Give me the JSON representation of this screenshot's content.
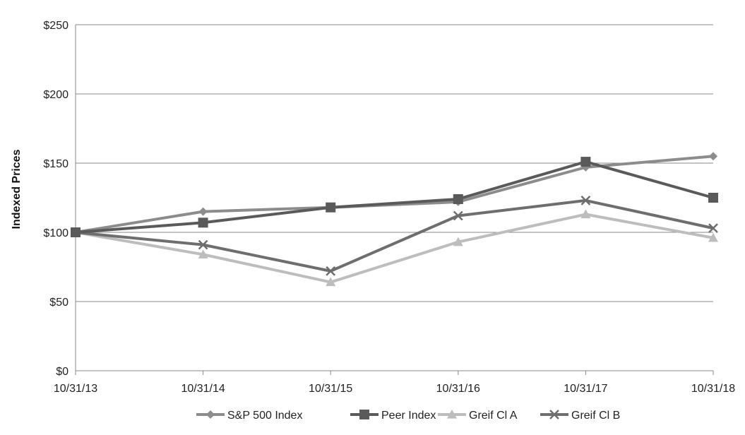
{
  "chart_data": {
    "type": "line",
    "title": "",
    "xlabel": "",
    "ylabel": "Indexed Prices",
    "categories": [
      "10/31/13",
      "10/31/14",
      "10/31/15",
      "10/31/16",
      "10/31/17",
      "10/31/18"
    ],
    "ylim": [
      0,
      250
    ],
    "yticks": [
      0,
      50,
      100,
      150,
      200,
      250
    ],
    "ytick_labels": [
      "$0",
      "$50",
      "$100",
      "$150",
      "$200",
      "$250"
    ],
    "grid": "horizontal",
    "legend_position": "bottom",
    "series": [
      {
        "name": "S&P 500 Index",
        "values": [
          100,
          115,
          118,
          122,
          147,
          155
        ],
        "color": "#8c8c8c",
        "marker": "diamond"
      },
      {
        "name": "Peer Index",
        "values": [
          100,
          107,
          118,
          124,
          151,
          125
        ],
        "color": "#5a5a5a",
        "marker": "square"
      },
      {
        "name": "Greif Cl A",
        "values": [
          100,
          84,
          64,
          93,
          113,
          96
        ],
        "color": "#bdbdbd",
        "marker": "triangle"
      },
      {
        "name": "Greif Cl B",
        "values": [
          100,
          91,
          72,
          112,
          123,
          103
        ],
        "color": "#6e6e6e",
        "marker": "x"
      }
    ]
  }
}
